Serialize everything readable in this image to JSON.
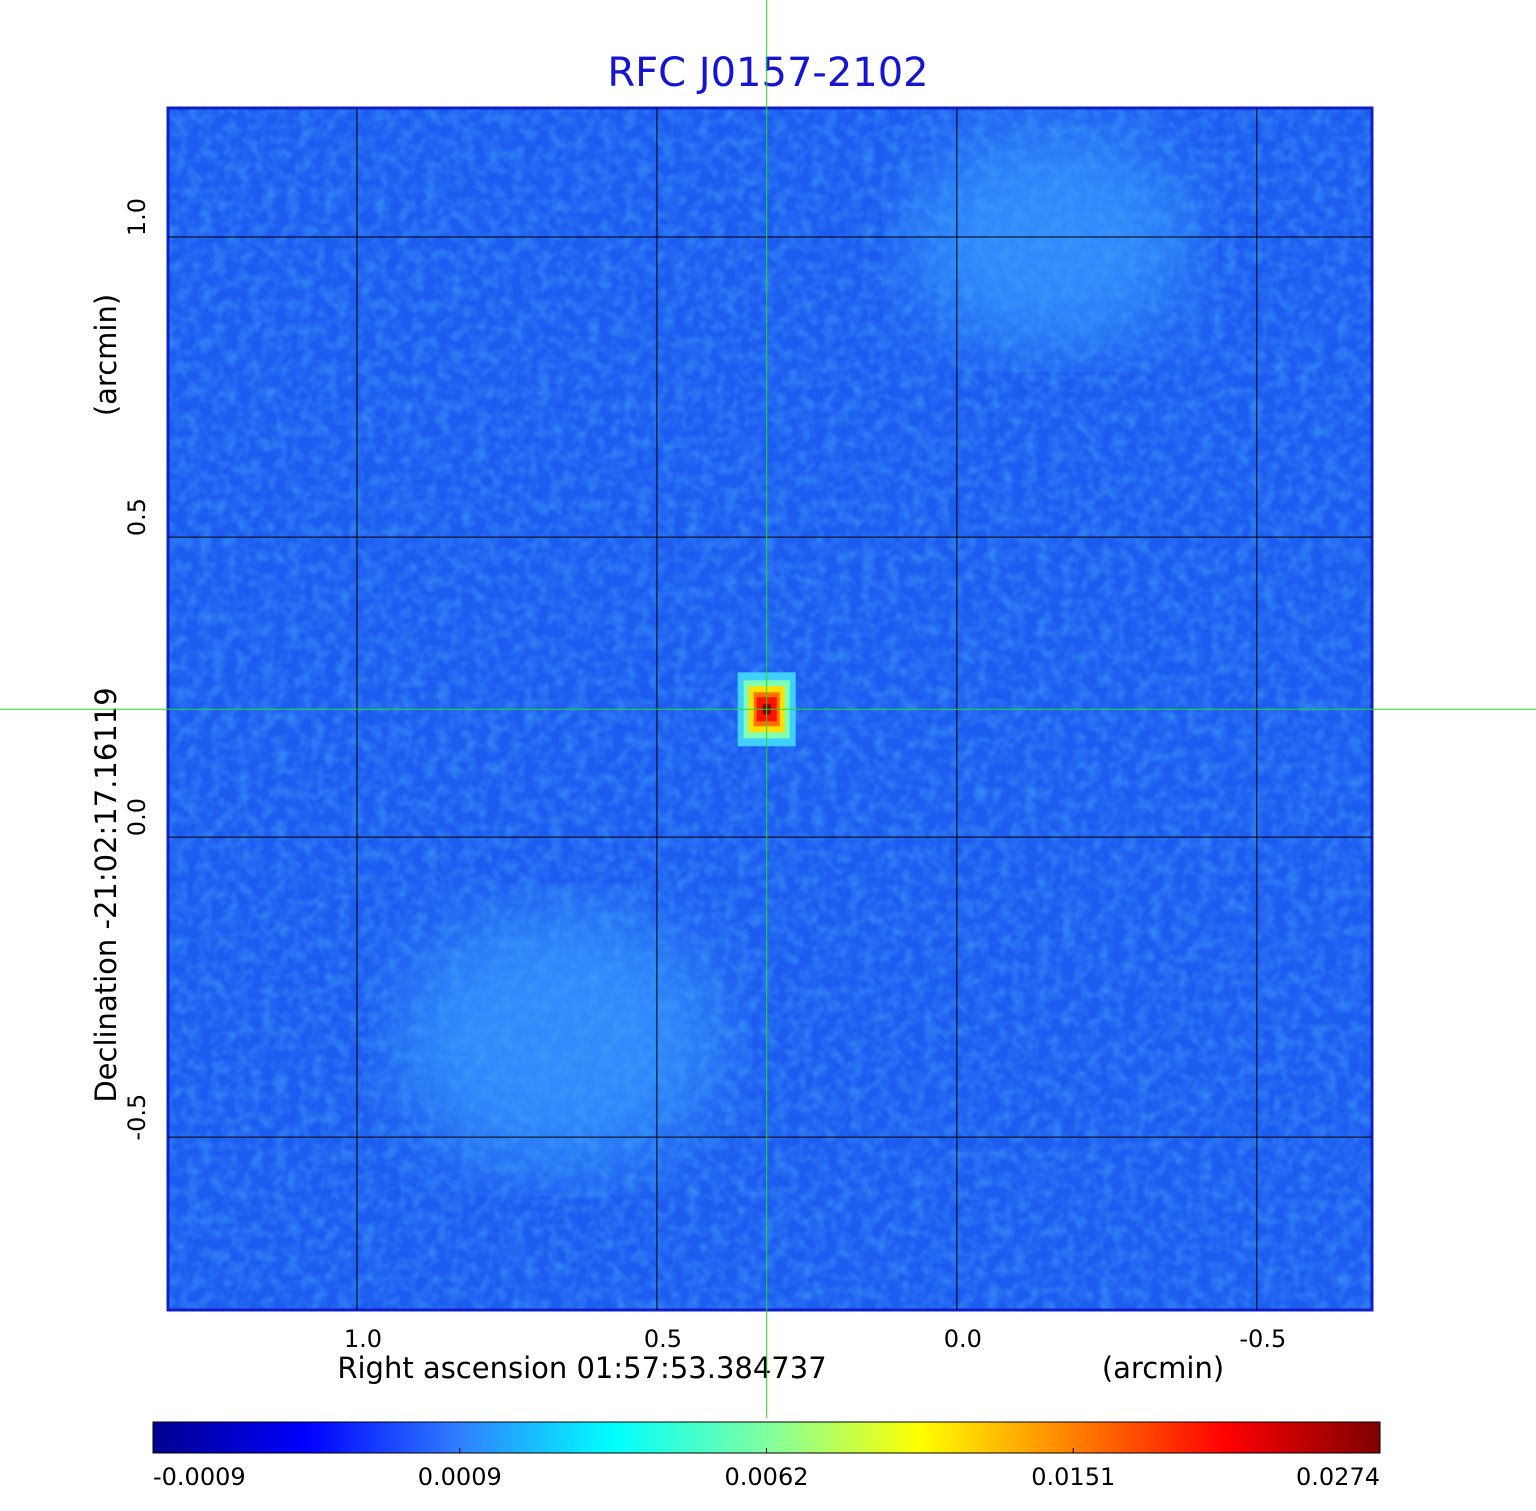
{
  "chart_data": {
    "type": "image",
    "title": "RFC J0157-2102",
    "xlabel": "Right ascension  01:57:53.384737",
    "xunit": "(arcmin)",
    "ylabel": "Declination  -21:02:17.16119",
    "yunit": "(arcmin)",
    "xlim": [
      1.315,
      -0.692
    ],
    "ylim": [
      -0.788,
      1.215
    ],
    "xticks": [
      {
        "value": 1,
        "label": "1.0"
      },
      {
        "value": 0.5,
        "label": "0.5"
      },
      {
        "value": 0,
        "label": "0.0"
      },
      {
        "value": -0.5,
        "label": "-0.5"
      }
    ],
    "yticks": [
      {
        "value": 1,
        "label": "1.0"
      },
      {
        "value": 0.5,
        "label": "0.5"
      },
      {
        "value": 0,
        "label": "0.0"
      },
      {
        "value": -0.5,
        "label": "-0.5"
      }
    ],
    "grid": true,
    "source": {
      "x": 0.317,
      "y": 0.213
    },
    "colorbar_ticks": [
      -0.0009,
      0.0009,
      0.0062,
      0.0151,
      0.0274
    ],
    "colorbar_colors": [
      "#00008f",
      "#0000ff",
      "#2f7fff",
      "#00ffff",
      "#80ffa0",
      "#ffff00",
      "#ff8000",
      "#ff0000",
      "#800000"
    ],
    "title_color": "#1414d2",
    "crosshair_color": "#22dd22"
  }
}
